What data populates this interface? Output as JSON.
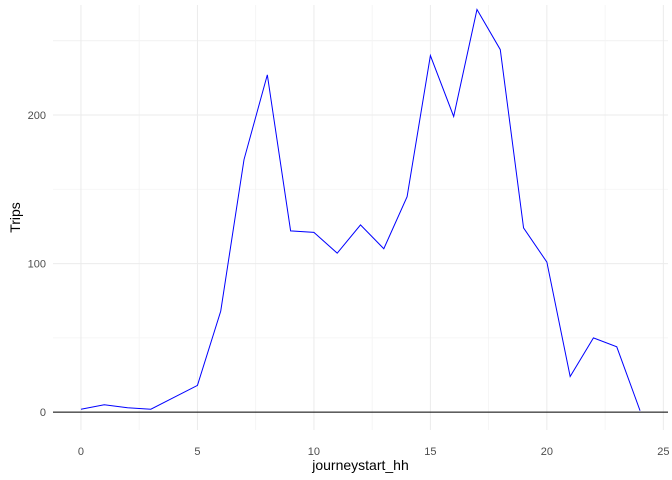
{
  "chart_data": {
    "type": "line",
    "xlabel": "journeystart_hh",
    "ylabel": "Trips",
    "xlim": [
      -1.2,
      25.2
    ],
    "ylim": [
      -12,
      274
    ],
    "x_ticks": [
      0,
      5,
      10,
      15,
      20,
      25
    ],
    "y_ticks": [
      0,
      100,
      200
    ],
    "grid": true,
    "reference_line_y": 0,
    "series_color": "#0000ff",
    "series": [
      {
        "x": [
          0,
          1,
          2,
          3,
          4,
          5,
          6,
          7,
          8,
          9,
          10,
          11,
          12,
          13,
          14,
          15,
          16,
          17,
          18,
          19,
          20,
          21,
          22,
          23,
          24
        ],
        "values": [
          2,
          5,
          3,
          2,
          10,
          18,
          68,
          170,
          227,
          122,
          121,
          107,
          126,
          110,
          145,
          240,
          199,
          271,
          244,
          124,
          101,
          24,
          50,
          44,
          1
        ]
      }
    ]
  }
}
